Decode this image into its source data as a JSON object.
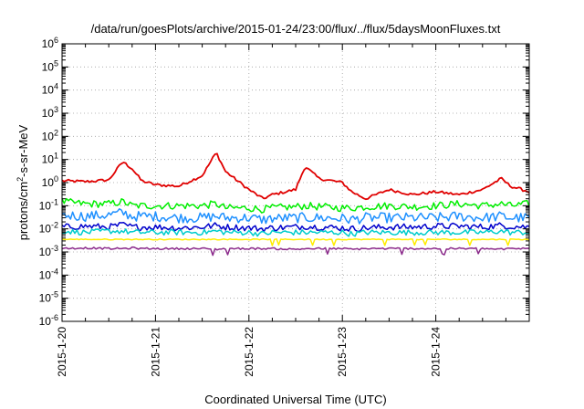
{
  "chart_data": {
    "type": "line",
    "title": "/data/run/goesPlots/archive/2015-01-24/23:00/flux/../flux/5daysMoonFluxes.txt",
    "xlabel": "Coordinated Universal Time (UTC)",
    "ylabel": "protons/cm²-s-sr-MeV",
    "ylabel_parts": {
      "base": "protons/cm",
      "sup": "2",
      "rest": "-s-sr-MeV"
    },
    "x_tick_labels": [
      "2015-1-20",
      "2015-1-21",
      "2015-1-22",
      "2015-1-23",
      "2015-1-24"
    ],
    "xlim": [
      "2015-1-20",
      "2015-1-25"
    ],
    "y_scale": "log",
    "ylim": [
      1e-06,
      1000000.0
    ],
    "y_tick_labels": [
      {
        "base": "10",
        "exp": "-6"
      },
      {
        "base": "10",
        "exp": "-5"
      },
      {
        "base": "10",
        "exp": "-4"
      },
      {
        "base": "10",
        "exp": "-3"
      },
      {
        "base": "10",
        "exp": "-2"
      },
      {
        "base": "10",
        "exp": "-1"
      },
      {
        "base": "10",
        "exp": "0"
      },
      {
        "base": "10",
        "exp": "1"
      },
      {
        "base": "10",
        "exp": "2"
      },
      {
        "base": "10",
        "exp": "3"
      },
      {
        "base": "10",
        "exp": "4"
      },
      {
        "base": "10",
        "exp": "5"
      },
      {
        "base": "10",
        "exp": "6"
      }
    ],
    "grid": true,
    "x_days": [
      0,
      0.25,
      0.5,
      0.65,
      0.75,
      0.85,
      1.0,
      1.25,
      1.5,
      1.65,
      1.75,
      2.0,
      2.15,
      2.25,
      2.5,
      2.6,
      2.75,
      3.0,
      3.1,
      3.25,
      3.5,
      3.75,
      4.0,
      4.25,
      4.5,
      4.7,
      4.8,
      5.0
    ],
    "series": [
      {
        "color": "#e00000",
        "values": [
          1.2,
          1.1,
          1.3,
          8.0,
          4.0,
          1.2,
          0.8,
          0.7,
          2.0,
          20.0,
          3.0,
          0.5,
          0.2,
          0.3,
          0.5,
          5.0,
          1.5,
          1.0,
          0.4,
          0.2,
          0.5,
          0.3,
          0.4,
          0.3,
          0.5,
          1.5,
          0.7,
          0.4
        ]
      },
      {
        "color": "#00ee00",
        "values": [
          0.15,
          0.12,
          0.12,
          0.15,
          0.1,
          0.1,
          0.1,
          0.1,
          0.1,
          0.12,
          0.08,
          0.08,
          0.07,
          0.08,
          0.09,
          0.1,
          0.09,
          0.08,
          0.08,
          0.09,
          0.1,
          0.09,
          0.1,
          0.12,
          0.1,
          0.12,
          0.1,
          0.12
        ]
      },
      {
        "color": "#1e90ff",
        "values": [
          0.04,
          0.035,
          0.04,
          0.05,
          0.035,
          0.035,
          0.035,
          0.03,
          0.03,
          0.035,
          0.03,
          0.03,
          0.025,
          0.028,
          0.03,
          0.03,
          0.03,
          0.028,
          0.025,
          0.03,
          0.03,
          0.03,
          0.03,
          0.035,
          0.03,
          0.035,
          0.03,
          0.03
        ]
      },
      {
        "color": "#0000cc",
        "values": [
          0.012,
          0.013,
          0.012,
          0.015,
          0.012,
          0.012,
          0.012,
          0.011,
          0.012,
          0.014,
          0.012,
          0.011,
          0.01,
          0.011,
          0.012,
          0.013,
          0.012,
          0.011,
          0.01,
          0.011,
          0.012,
          0.012,
          0.013,
          0.013,
          0.012,
          0.014,
          0.013,
          0.012
        ]
      },
      {
        "color": "#00cccc",
        "values": [
          0.008,
          0.007,
          0.008,
          0.008,
          0.007,
          0.007,
          0.007,
          0.007,
          0.007,
          0.008,
          0.007,
          0.007,
          0.006,
          0.007,
          0.007,
          0.007,
          0.007,
          0.007,
          0.006,
          0.007,
          0.007,
          0.007,
          0.007,
          0.007,
          0.007,
          0.008,
          0.007,
          0.007
        ]
      },
      {
        "color": "#ffee00",
        "values": [
          0.0035,
          0.0035,
          0.0035,
          0.0035,
          0.0035,
          0.0035,
          0.0035,
          0.0035,
          0.0035,
          0.0035,
          0.0035,
          0.0035,
          0.0035,
          0.0035,
          0.0035,
          0.0035,
          0.0035,
          0.0035,
          0.0035,
          0.0035,
          0.0035,
          0.0035,
          0.0035,
          0.0035,
          0.0035,
          0.0035,
          0.0035,
          0.0035
        ]
      },
      {
        "color": "#8b2a8b",
        "values": [
          0.0014,
          0.0015,
          0.0014,
          0.0014,
          0.0015,
          0.0014,
          0.0014,
          0.0014,
          0.0014,
          0.0013,
          0.0014,
          0.0014,
          0.0014,
          0.0014,
          0.0013,
          0.0014,
          0.0014,
          0.0014,
          0.0013,
          0.0014,
          0.0014,
          0.0014,
          0.0014,
          0.0014,
          0.0014,
          0.0013,
          0.0014,
          0.0014
        ]
      }
    ]
  }
}
